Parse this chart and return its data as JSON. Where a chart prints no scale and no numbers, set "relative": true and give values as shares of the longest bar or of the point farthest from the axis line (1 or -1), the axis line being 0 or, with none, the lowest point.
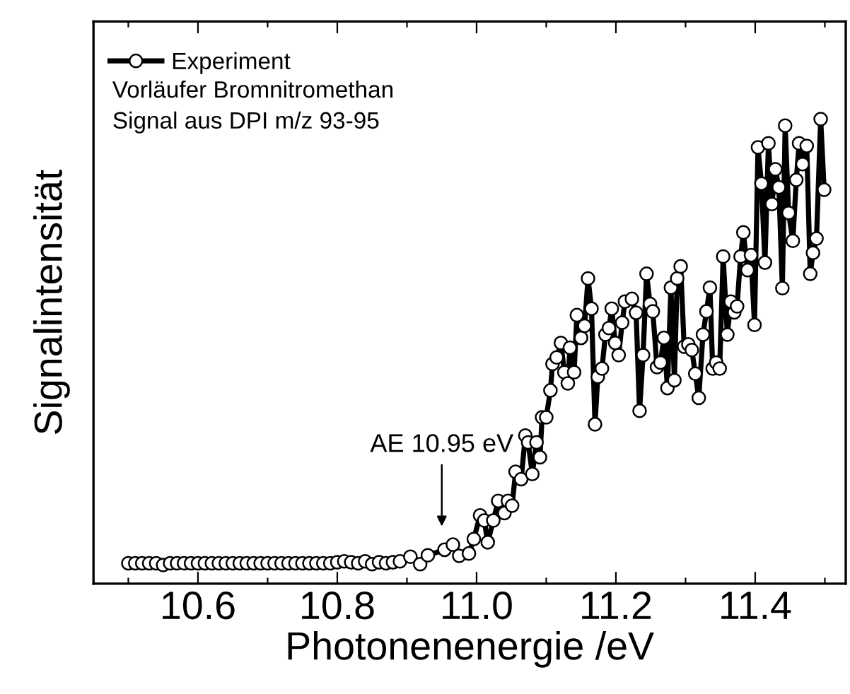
{
  "chart_data": {
    "type": "line",
    "relative": true,
    "marker": "circle",
    "line_style": "solid",
    "legend": "top left",
    "grid": false,
    "xlabel": "Photonenenergie /eV",
    "ylabel": "Signalintensität",
    "xlim": [
      10.45,
      11.53
    ],
    "xticks": [
      {
        "value": 10.5,
        "label": null
      },
      10.6,
      {
        "value": 10.7,
        "label": null
      },
      10.8,
      {
        "value": 10.9,
        "label": null
      },
      {
        "value": 11.0,
        "label": "11.0"
      },
      {
        "value": 11.1,
        "label": null
      },
      11.2,
      {
        "value": 11.3,
        "label": null
      },
      11.4,
      {
        "value": 11.5,
        "label": null
      }
    ],
    "annotations": [
      "Vorläufer Bromnitromethan",
      "Signal aus DPI m/z 93-95",
      "AE 10.95 eV"
    ],
    "series": [
      {
        "name": "Experiment",
        "color": "#000000",
        "x": [
          10.5,
          10.51,
          10.52,
          10.53,
          10.54,
          10.55,
          10.56,
          10.57,
          10.58,
          10.59,
          10.6,
          10.61,
          10.62,
          10.63,
          10.64,
          10.65,
          10.66,
          10.67,
          10.68,
          10.69,
          10.7,
          10.71,
          10.72,
          10.73,
          10.74,
          10.75,
          10.76,
          10.77,
          10.78,
          10.79,
          10.8,
          10.81,
          10.82,
          10.83,
          10.84,
          10.85,
          10.86,
          10.87,
          10.88,
          10.89,
          10.905,
          10.919,
          10.93,
          10.954,
          10.966,
          10.975,
          10.989,
          10.996,
          11.005,
          11.011,
          11.016,
          11.024,
          11.031,
          11.04,
          11.045,
          11.051,
          11.056,
          11.064,
          11.07,
          11.074,
          11.08,
          11.086,
          11.091,
          11.094,
          11.1,
          11.106,
          11.109,
          11.115,
          11.121,
          11.126,
          11.131,
          11.134,
          11.14,
          11.144,
          11.15,
          11.155,
          11.16,
          11.165,
          11.17,
          11.174,
          11.18,
          11.185,
          11.19,
          11.194,
          11.199,
          11.204,
          11.209,
          11.213,
          11.223,
          11.229,
          11.234,
          11.239,
          11.244,
          11.249,
          11.253,
          11.259,
          11.264,
          11.269,
          11.274,
          11.279,
          11.284,
          11.288,
          11.293,
          11.298,
          11.304,
          11.309,
          11.314,
          11.319,
          11.325,
          11.33,
          11.335,
          11.339,
          11.344,
          11.349,
          11.354,
          11.36,
          11.365,
          11.37,
          11.374,
          11.379,
          11.383,
          11.389,
          11.394,
          11.399,
          11.404,
          11.409,
          11.414,
          11.419,
          11.424,
          11.429,
          11.434,
          11.439,
          11.443,
          11.448,
          11.454,
          11.459,
          11.463,
          11.468,
          11.474,
          11.479,
          11.483,
          11.488,
          11.494,
          11.499
        ],
        "values": [
          0.044,
          0.044,
          0.044,
          0.044,
          0.044,
          0.04,
          0.044,
          0.044,
          0.044,
          0.044,
          0.044,
          0.044,
          0.044,
          0.044,
          0.044,
          0.044,
          0.044,
          0.044,
          0.044,
          0.044,
          0.044,
          0.044,
          0.044,
          0.044,
          0.044,
          0.044,
          0.044,
          0.044,
          0.044,
          0.044,
          0.046,
          0.048,
          0.046,
          0.044,
          0.048,
          0.042,
          0.046,
          0.044,
          0.046,
          0.048,
          0.058,
          0.042,
          0.061,
          0.073,
          0.084,
          0.06,
          0.065,
          0.096,
          0.147,
          0.136,
          0.089,
          0.136,
          0.178,
          0.152,
          0.178,
          0.168,
          0.241,
          0.225,
          0.319,
          0.304,
          0.236,
          0.304,
          0.272,
          0.358,
          0.358,
          0.416,
          0.473,
          0.487,
          0.518,
          0.455,
          0.431,
          0.508,
          0.455,
          0.578,
          0.529,
          0.555,
          0.657,
          0.592,
          0.343,
          0.445,
          0.463,
          0.536,
          0.55,
          0.592,
          0.518,
          0.492,
          0.562,
          0.607,
          0.613,
          0.583,
          0.372,
          0.492,
          0.667,
          0.602,
          0.586,
          0.466,
          0.476,
          0.529,
          0.421,
          0.637,
          0.438,
          0.657,
          0.683,
          0.51,
          0.515,
          0.503,
          0.452,
          0.4,
          0.536,
          0.586,
          0.637,
          0.463,
          0.476,
          0.463,
          0.704,
          0.536,
          0.607,
          0.584,
          0.597,
          0.704,
          0.756,
          0.675,
          0.707,
          0.557,
          0.939,
          0.861,
          0.691,
          0.948,
          0.817,
          0.892,
          0.853,
          0.636,
          0.986,
          0.798,
          0.738,
          0.869,
          0.948,
          0.903,
          0.942,
          0.667,
          0.712,
          0.743,
          1.0,
          0.848
        ]
      }
    ]
  }
}
